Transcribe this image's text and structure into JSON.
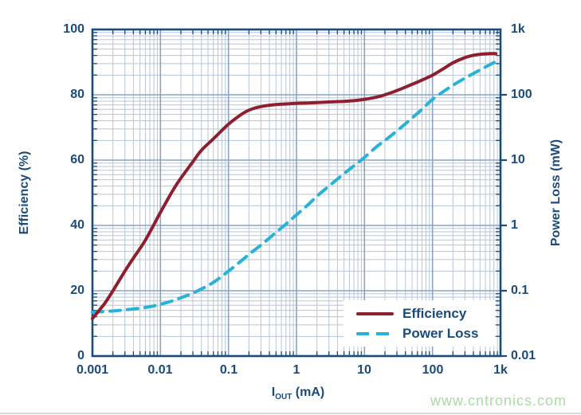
{
  "watermark": {
    "text": "www.cntronics.com",
    "color": "#a9dda4"
  },
  "chart_data": {
    "type": "line",
    "title": "",
    "grid": true,
    "text_color": "#1a4b7c",
    "x_axis": {
      "label_prefix": "I",
      "label_sub": "OUT",
      "label_suffix": " (mA)",
      "scale": "log",
      "min": 0.001,
      "max": 1000,
      "tick_labels": [
        "0.001",
        "0.01",
        "0.1",
        "1",
        "10",
        "100",
        "1k"
      ]
    },
    "y_left": {
      "label": "Efficiency (%)",
      "scale": "linear",
      "min": 0,
      "max": 100,
      "tick_labels": [
        "100",
        "80",
        "60",
        "40",
        "20",
        "0"
      ]
    },
    "y_right": {
      "label": "Power Loss (mW)",
      "scale": "log",
      "min": 0.01,
      "max": 1000,
      "tick_labels": [
        "1k",
        "100",
        "10",
        "1",
        "0.1",
        "0.01"
      ]
    },
    "legend": {
      "position": "bottom-right",
      "items": [
        {
          "label": "Efficiency",
          "color": "#8e1f2e",
          "style": "solid"
        },
        {
          "label": "Power Loss",
          "color": "#29b2d8",
          "style": "dashed"
        }
      ]
    },
    "series": [
      {
        "name": "Efficiency",
        "axis": "left",
        "units": "%",
        "color": "#8e1f2e",
        "style": "solid",
        "points": [
          [
            0.001,
            11.5
          ],
          [
            0.0015,
            16
          ],
          [
            0.002,
            20
          ],
          [
            0.003,
            26
          ],
          [
            0.004,
            30
          ],
          [
            0.006,
            35.5
          ],
          [
            0.01,
            44
          ],
          [
            0.015,
            50.5
          ],
          [
            0.02,
            54.5
          ],
          [
            0.03,
            59.5
          ],
          [
            0.04,
            63
          ],
          [
            0.06,
            66.5
          ],
          [
            0.1,
            71
          ],
          [
            0.15,
            73.8
          ],
          [
            0.2,
            75.3
          ],
          [
            0.3,
            76.4
          ],
          [
            0.5,
            77
          ],
          [
            0.7,
            77.2
          ],
          [
            1,
            77.4
          ],
          [
            1.5,
            77.5
          ],
          [
            2,
            77.6
          ],
          [
            3,
            77.8
          ],
          [
            5,
            78
          ],
          [
            7,
            78.2
          ],
          [
            10,
            78.6
          ],
          [
            15,
            79.3
          ],
          [
            20,
            80
          ],
          [
            30,
            81.3
          ],
          [
            50,
            83.2
          ],
          [
            70,
            84.5
          ],
          [
            100,
            86
          ],
          [
            150,
            88.2
          ],
          [
            200,
            89.8
          ],
          [
            300,
            91.4
          ],
          [
            400,
            92.1
          ],
          [
            500,
            92.4
          ],
          [
            700,
            92.6
          ],
          [
            850,
            92.6
          ]
        ]
      },
      {
        "name": "Power Loss",
        "axis": "right",
        "units": "mW",
        "color": "#29b2d8",
        "style": "dashed",
        "points": [
          [
            0.001,
            0.047
          ],
          [
            0.002,
            0.049
          ],
          [
            0.003,
            0.051
          ],
          [
            0.005,
            0.054
          ],
          [
            0.007,
            0.057
          ],
          [
            0.01,
            0.062
          ],
          [
            0.015,
            0.07
          ],
          [
            0.02,
            0.078
          ],
          [
            0.03,
            0.092
          ],
          [
            0.05,
            0.12
          ],
          [
            0.07,
            0.15
          ],
          [
            0.1,
            0.2
          ],
          [
            0.15,
            0.28
          ],
          [
            0.2,
            0.36
          ],
          [
            0.3,
            0.5
          ],
          [
            0.5,
            0.78
          ],
          [
            0.7,
            1.05
          ],
          [
            1,
            1.45
          ],
          [
            1.5,
            2.1
          ],
          [
            2,
            2.8
          ],
          [
            3,
            4.0
          ],
          [
            5,
            6.2
          ],
          [
            7,
            8.2
          ],
          [
            10,
            11
          ],
          [
            15,
            16
          ],
          [
            20,
            20
          ],
          [
            30,
            28
          ],
          [
            50,
            44
          ],
          [
            70,
            60
          ],
          [
            100,
            85
          ],
          [
            150,
            115
          ],
          [
            200,
            140
          ],
          [
            300,
            180
          ],
          [
            500,
            240
          ],
          [
            700,
            290
          ],
          [
            900,
            330
          ]
        ]
      }
    ]
  }
}
